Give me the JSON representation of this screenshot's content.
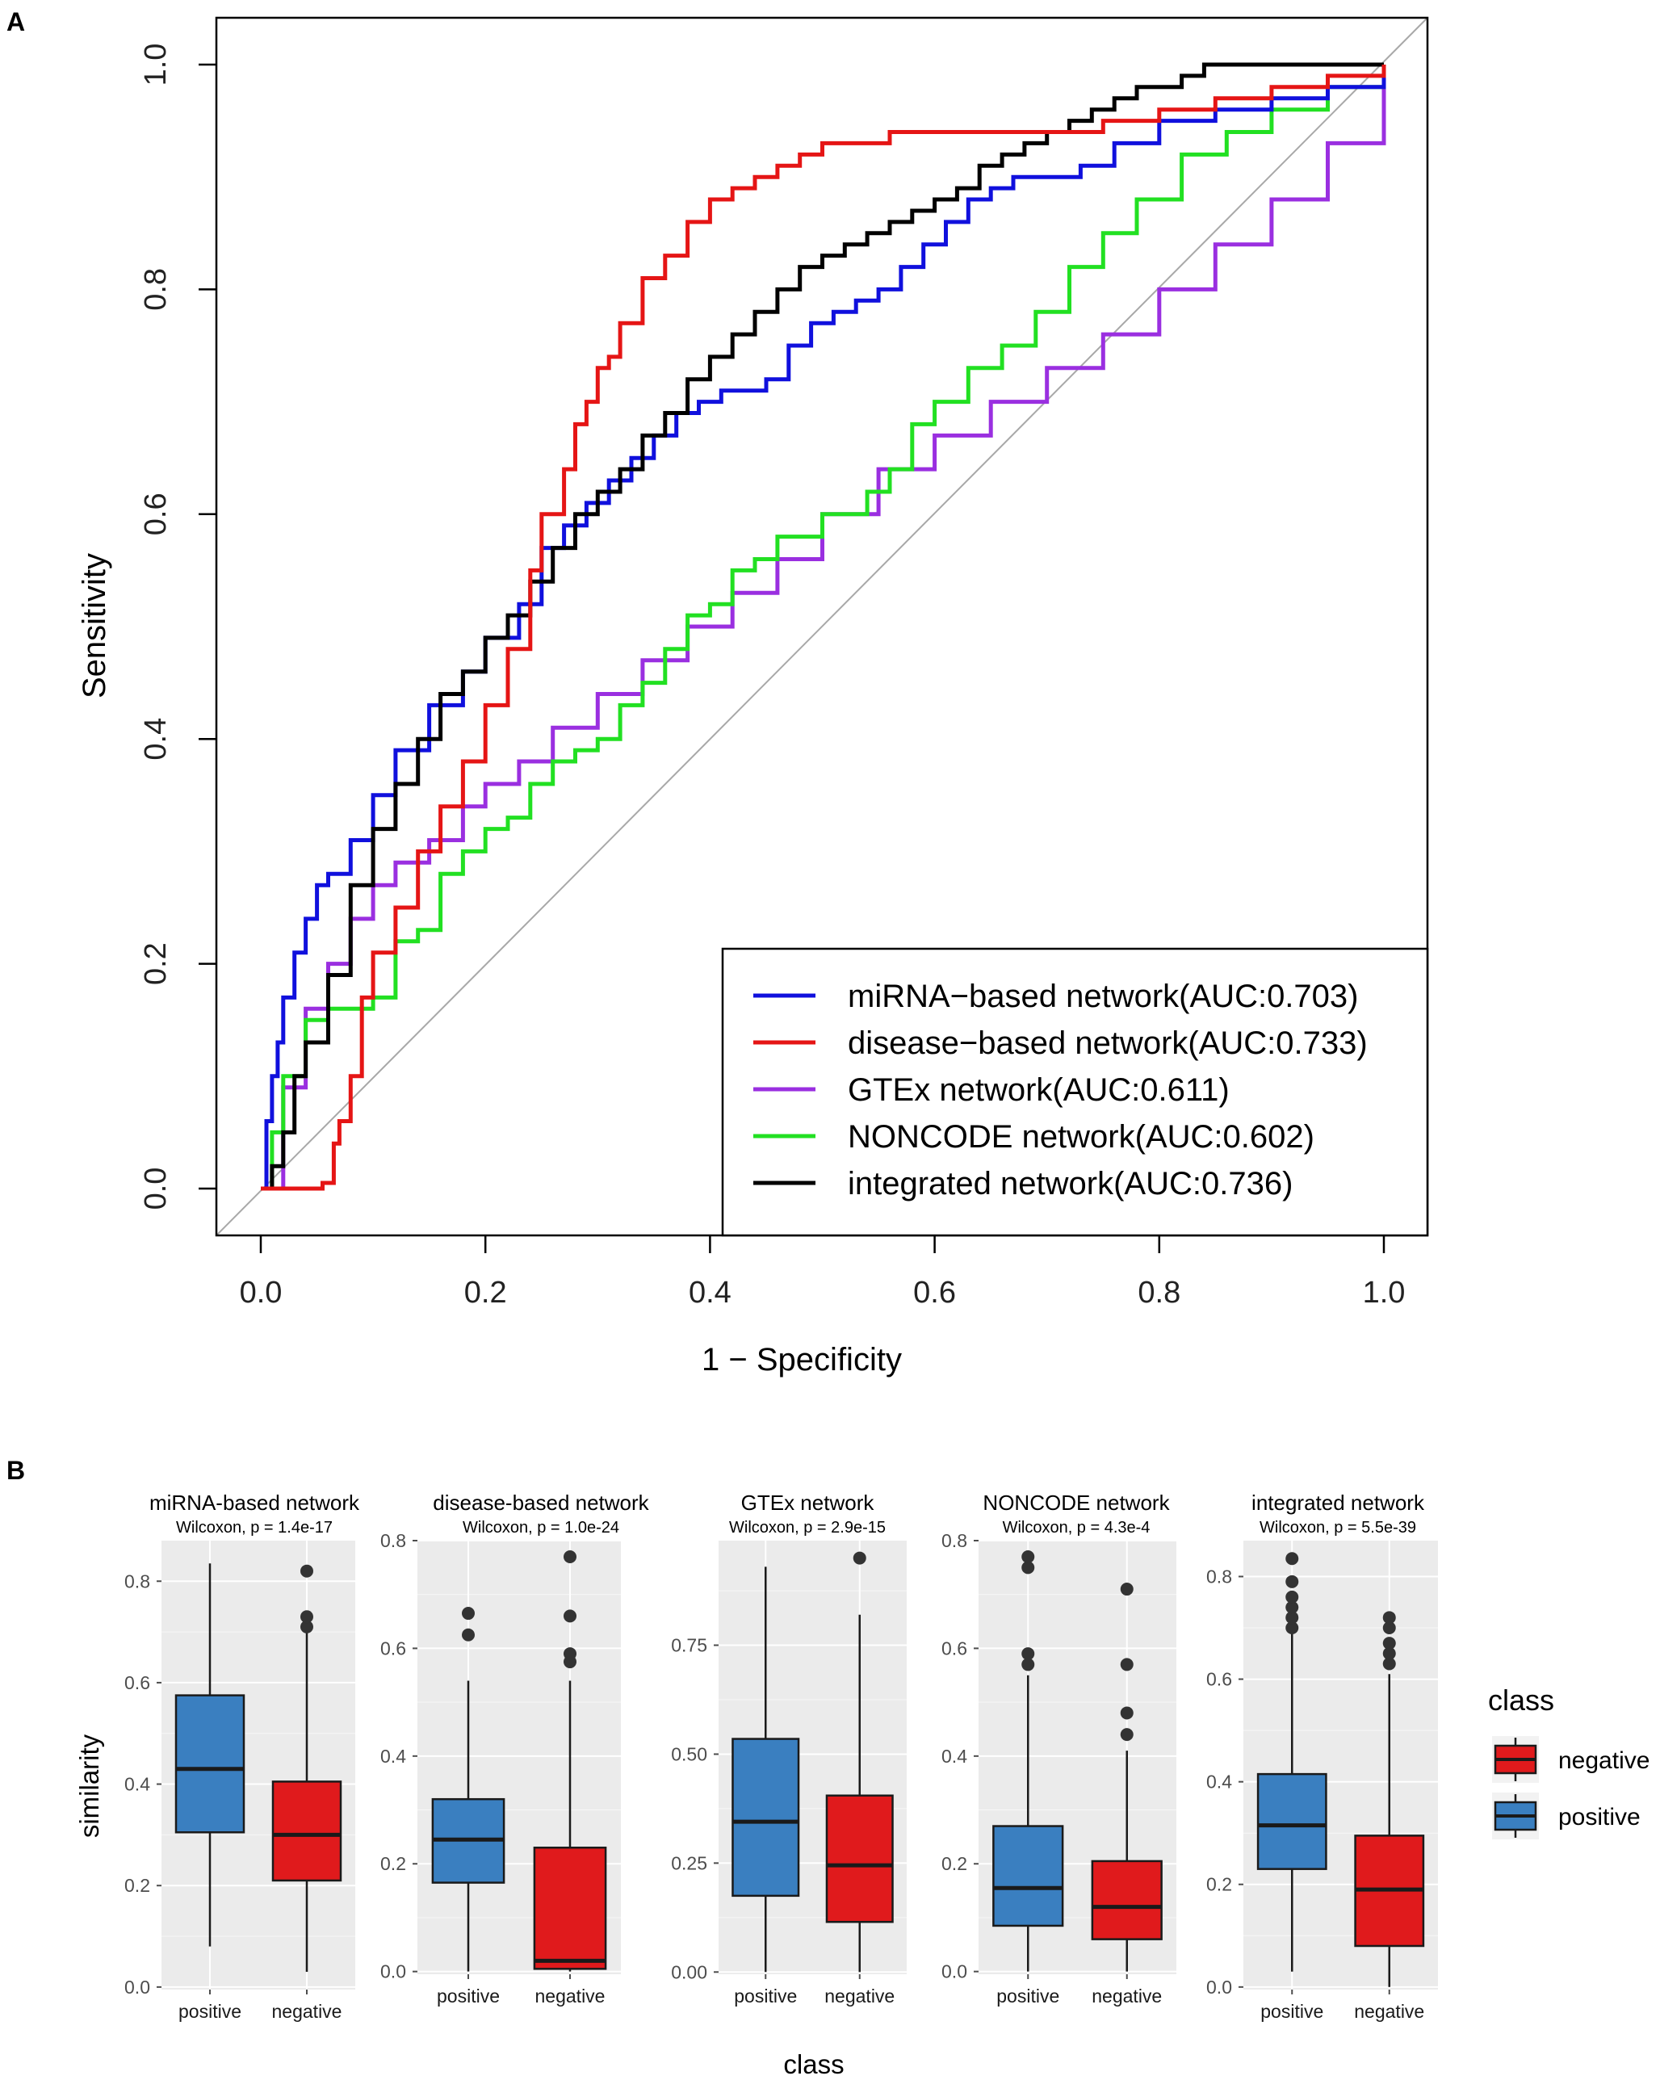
{
  "panels": {
    "a_label": "A",
    "b_label": "B"
  },
  "colors": {
    "mirna": "#1010dd",
    "disease": "#e51515",
    "gtex": "#9a2fe0",
    "noncode": "#22e022",
    "integrated": "#000000",
    "diagonal": "#a8a8a8",
    "box_positive": "#3a7fc0",
    "box_negative": "#e01a1c",
    "panel_bg": "#ebebeb",
    "grid": "#ffffff"
  },
  "chart_data": [
    {
      "type": "line",
      "title": "",
      "xlabel": "1 − Specificity",
      "ylabel": "Sensitivity",
      "xlim": [
        0,
        1
      ],
      "ylim": [
        0,
        1
      ],
      "xticks": [
        "0.0",
        "0.2",
        "0.4",
        "0.6",
        "0.8",
        "1.0"
      ],
      "yticks": [
        "0.0",
        "0.2",
        "0.4",
        "0.6",
        "0.8",
        "1.0"
      ],
      "legend_position": "bottom-right",
      "series": [
        {
          "name": "miRNA−based network(AUC:0.703)",
          "color_key": "mirna",
          "x": [
            0,
            0.005,
            0.01,
            0.015,
            0.02,
            0.03,
            0.04,
            0.05,
            0.06,
            0.08,
            0.1,
            0.12,
            0.15,
            0.18,
            0.2,
            0.23,
            0.25,
            0.27,
            0.29,
            0.31,
            0.33,
            0.35,
            0.37,
            0.39,
            0.41,
            0.43,
            0.45,
            0.47,
            0.49,
            0.51,
            0.53,
            0.55,
            0.57,
            0.59,
            0.61,
            0.63,
            0.65,
            0.67,
            0.7,
            0.73,
            0.76,
            0.8,
            0.85,
            0.9,
            0.95,
            1.0
          ],
          "y": [
            0,
            0.06,
            0.1,
            0.13,
            0.17,
            0.21,
            0.24,
            0.27,
            0.28,
            0.31,
            0.35,
            0.39,
            0.43,
            0.46,
            0.49,
            0.52,
            0.57,
            0.59,
            0.61,
            0.63,
            0.65,
            0.67,
            0.69,
            0.7,
            0.71,
            0.71,
            0.72,
            0.75,
            0.77,
            0.78,
            0.79,
            0.8,
            0.82,
            0.84,
            0.86,
            0.88,
            0.89,
            0.9,
            0.9,
            0.91,
            0.93,
            0.95,
            0.96,
            0.97,
            0.98,
            1.0
          ]
        },
        {
          "name": "disease−based network(AUC:0.733)",
          "color_key": "disease",
          "x": [
            0,
            0.03,
            0.055,
            0.065,
            0.07,
            0.08,
            0.09,
            0.1,
            0.12,
            0.14,
            0.16,
            0.18,
            0.2,
            0.22,
            0.24,
            0.25,
            0.27,
            0.28,
            0.29,
            0.3,
            0.31,
            0.32,
            0.34,
            0.36,
            0.38,
            0.4,
            0.42,
            0.44,
            0.46,
            0.48,
            0.5,
            0.53,
            0.56,
            0.6,
            0.65,
            0.7,
            0.75,
            0.8,
            0.85,
            0.9,
            0.95,
            1.0
          ],
          "y": [
            0,
            0,
            0.005,
            0.04,
            0.06,
            0.1,
            0.17,
            0.21,
            0.25,
            0.3,
            0.34,
            0.38,
            0.43,
            0.48,
            0.55,
            0.6,
            0.64,
            0.68,
            0.7,
            0.73,
            0.74,
            0.77,
            0.81,
            0.83,
            0.86,
            0.88,
            0.89,
            0.9,
            0.91,
            0.92,
            0.93,
            0.93,
            0.94,
            0.94,
            0.94,
            0.94,
            0.95,
            0.96,
            0.97,
            0.98,
            0.99,
            1.0
          ]
        },
        {
          "name": "GTEx network(AUC:0.611)",
          "color_key": "gtex",
          "x": [
            0,
            0.02,
            0.04,
            0.06,
            0.08,
            0.1,
            0.12,
            0.15,
            0.18,
            0.2,
            0.23,
            0.26,
            0.3,
            0.34,
            0.38,
            0.42,
            0.46,
            0.5,
            0.55,
            0.6,
            0.65,
            0.7,
            0.75,
            0.8,
            0.85,
            0.9,
            0.95,
            1.0
          ],
          "y": [
            0,
            0.09,
            0.16,
            0.2,
            0.24,
            0.27,
            0.29,
            0.31,
            0.34,
            0.36,
            0.38,
            0.41,
            0.44,
            0.47,
            0.5,
            0.53,
            0.56,
            0.6,
            0.64,
            0.67,
            0.7,
            0.73,
            0.76,
            0.8,
            0.84,
            0.88,
            0.93,
            1.0
          ]
        },
        {
          "name": "NONCODE network(AUC:0.602)",
          "color_key": "noncode",
          "x": [
            0,
            0.01,
            0.02,
            0.04,
            0.06,
            0.08,
            0.1,
            0.12,
            0.14,
            0.16,
            0.18,
            0.2,
            0.22,
            0.24,
            0.26,
            0.28,
            0.3,
            0.32,
            0.34,
            0.36,
            0.38,
            0.4,
            0.42,
            0.44,
            0.46,
            0.48,
            0.5,
            0.52,
            0.54,
            0.56,
            0.58,
            0.6,
            0.63,
            0.66,
            0.69,
            0.72,
            0.75,
            0.78,
            0.82,
            0.86,
            0.9,
            0.95,
            1.0
          ],
          "y": [
            0,
            0.05,
            0.1,
            0.15,
            0.16,
            0.16,
            0.17,
            0.22,
            0.23,
            0.28,
            0.3,
            0.32,
            0.33,
            0.36,
            0.38,
            0.39,
            0.4,
            0.43,
            0.45,
            0.48,
            0.51,
            0.52,
            0.55,
            0.56,
            0.58,
            0.58,
            0.6,
            0.6,
            0.62,
            0.64,
            0.68,
            0.7,
            0.73,
            0.75,
            0.78,
            0.82,
            0.85,
            0.88,
            0.92,
            0.94,
            0.96,
            0.98,
            1.0
          ]
        },
        {
          "name": "integrated network(AUC:0.736)",
          "color_key": "integrated",
          "x": [
            0,
            0.01,
            0.02,
            0.03,
            0.04,
            0.06,
            0.08,
            0.1,
            0.12,
            0.14,
            0.16,
            0.18,
            0.2,
            0.22,
            0.24,
            0.26,
            0.28,
            0.3,
            0.32,
            0.34,
            0.36,
            0.38,
            0.4,
            0.42,
            0.44,
            0.46,
            0.48,
            0.5,
            0.52,
            0.54,
            0.56,
            0.58,
            0.6,
            0.62,
            0.64,
            0.66,
            0.68,
            0.7,
            0.72,
            0.74,
            0.76,
            0.78,
            0.8,
            0.82,
            0.84,
            0.86,
            0.88,
            0.9,
            0.95,
            1.0
          ],
          "y": [
            0,
            0.02,
            0.05,
            0.1,
            0.13,
            0.19,
            0.27,
            0.32,
            0.36,
            0.4,
            0.44,
            0.46,
            0.49,
            0.51,
            0.54,
            0.57,
            0.6,
            0.62,
            0.64,
            0.67,
            0.69,
            0.72,
            0.74,
            0.76,
            0.78,
            0.8,
            0.82,
            0.83,
            0.84,
            0.85,
            0.86,
            0.87,
            0.88,
            0.89,
            0.91,
            0.92,
            0.93,
            0.94,
            0.95,
            0.96,
            0.97,
            0.98,
            0.98,
            0.99,
            1.0,
            1.0,
            1.0,
            1.0,
            1.0,
            1.0
          ]
        }
      ]
    },
    {
      "type": "box",
      "xlabel": "class",
      "ylabel": "similarity",
      "legend": {
        "title": "class",
        "entries": [
          "negative",
          "positive"
        ]
      },
      "facets": [
        {
          "title": "miRNA-based network",
          "subtitle": "Wilcoxon, p = 1.4e-17",
          "ylim": [
            -0.005,
            0.88
          ],
          "yticks": [
            0.0,
            0.2,
            0.4,
            0.6,
            0.8
          ],
          "ytick_labels": [
            "0.0",
            "0.2",
            "0.4",
            "0.6",
            "0.8"
          ],
          "categories": [
            "positive",
            "negative"
          ],
          "boxes": [
            {
              "class": "positive",
              "min": 0.08,
              "q1": 0.305,
              "median": 0.43,
              "q3": 0.575,
              "max": 0.835,
              "outliers": []
            },
            {
              "class": "negative",
              "min": 0.03,
              "q1": 0.21,
              "median": 0.3,
              "q3": 0.405,
              "max": 0.7,
              "outliers": [
                0.71,
                0.73,
                0.82
              ]
            }
          ]
        },
        {
          "title": "disease-based network",
          "subtitle": "Wilcoxon, p = 1.0e-24",
          "ylim": [
            -0.005,
            0.8
          ],
          "yticks": [
            0.0,
            0.2,
            0.4,
            0.6,
            0.8
          ],
          "ytick_labels": [
            "0.0",
            "0.2",
            "0.4",
            "0.6",
            "0.8"
          ],
          "categories": [
            "positive",
            "negative"
          ],
          "boxes": [
            {
              "class": "positive",
              "min": 0.0,
              "q1": 0.165,
              "median": 0.245,
              "q3": 0.32,
              "max": 0.54,
              "outliers": [
                0.625,
                0.665
              ]
            },
            {
              "class": "negative",
              "min": 0.0,
              "q1": 0.005,
              "median": 0.02,
              "q3": 0.23,
              "max": 0.54,
              "outliers": [
                0.575,
                0.59,
                0.66,
                0.77
              ]
            }
          ]
        },
        {
          "title": "GTEx network",
          "subtitle": "Wilcoxon, p = 2.9e-15",
          "ylim": [
            -0.005,
            0.99
          ],
          "yticks": [
            0.0,
            0.25,
            0.5,
            0.75
          ],
          "ytick_labels": [
            "0.00",
            "0.25",
            "0.50",
            "0.75"
          ],
          "categories": [
            "positive",
            "negative"
          ],
          "boxes": [
            {
              "class": "positive",
              "min": 0.0,
              "q1": 0.175,
              "median": 0.345,
              "q3": 0.535,
              "max": 0.93,
              "outliers": []
            },
            {
              "class": "negative",
              "min": 0.0,
              "q1": 0.115,
              "median": 0.245,
              "q3": 0.405,
              "max": 0.82,
              "outliers": [
                0.95
              ]
            }
          ]
        },
        {
          "title": "NONCODE network",
          "subtitle": "Wilcoxon, p = 4.3e-4",
          "ylim": [
            -0.005,
            0.8
          ],
          "yticks": [
            0.0,
            0.2,
            0.4,
            0.6,
            0.8
          ],
          "ytick_labels": [
            "0.0",
            "0.2",
            "0.4",
            "0.6",
            "0.8"
          ],
          "categories": [
            "positive",
            "negative"
          ],
          "boxes": [
            {
              "class": "positive",
              "min": 0.0,
              "q1": 0.085,
              "median": 0.155,
              "q3": 0.27,
              "max": 0.55,
              "outliers": [
                0.57,
                0.59,
                0.75,
                0.77
              ]
            },
            {
              "class": "negative",
              "min": 0.0,
              "q1": 0.06,
              "median": 0.12,
              "q3": 0.205,
              "max": 0.41,
              "outliers": [
                0.44,
                0.48,
                0.57,
                0.71
              ]
            }
          ]
        },
        {
          "title": "integrated network",
          "subtitle": "Wilcoxon, p = 5.5e-39",
          "ylim": [
            -0.005,
            0.87
          ],
          "yticks": [
            0.0,
            0.2,
            0.4,
            0.6,
            0.8
          ],
          "ytick_labels": [
            "0.0",
            "0.2",
            "0.4",
            "0.6",
            "0.8"
          ],
          "categories": [
            "positive",
            "negative"
          ],
          "boxes": [
            {
              "class": "positive",
              "min": 0.03,
              "q1": 0.23,
              "median": 0.315,
              "q3": 0.415,
              "max": 0.69,
              "outliers": [
                0.7,
                0.72,
                0.74,
                0.76,
                0.79,
                0.835
              ]
            },
            {
              "class": "negative",
              "min": 0.0,
              "q1": 0.08,
              "median": 0.19,
              "q3": 0.295,
              "max": 0.61,
              "outliers": [
                0.63,
                0.65,
                0.67,
                0.7,
                0.72
              ]
            }
          ]
        }
      ]
    }
  ]
}
